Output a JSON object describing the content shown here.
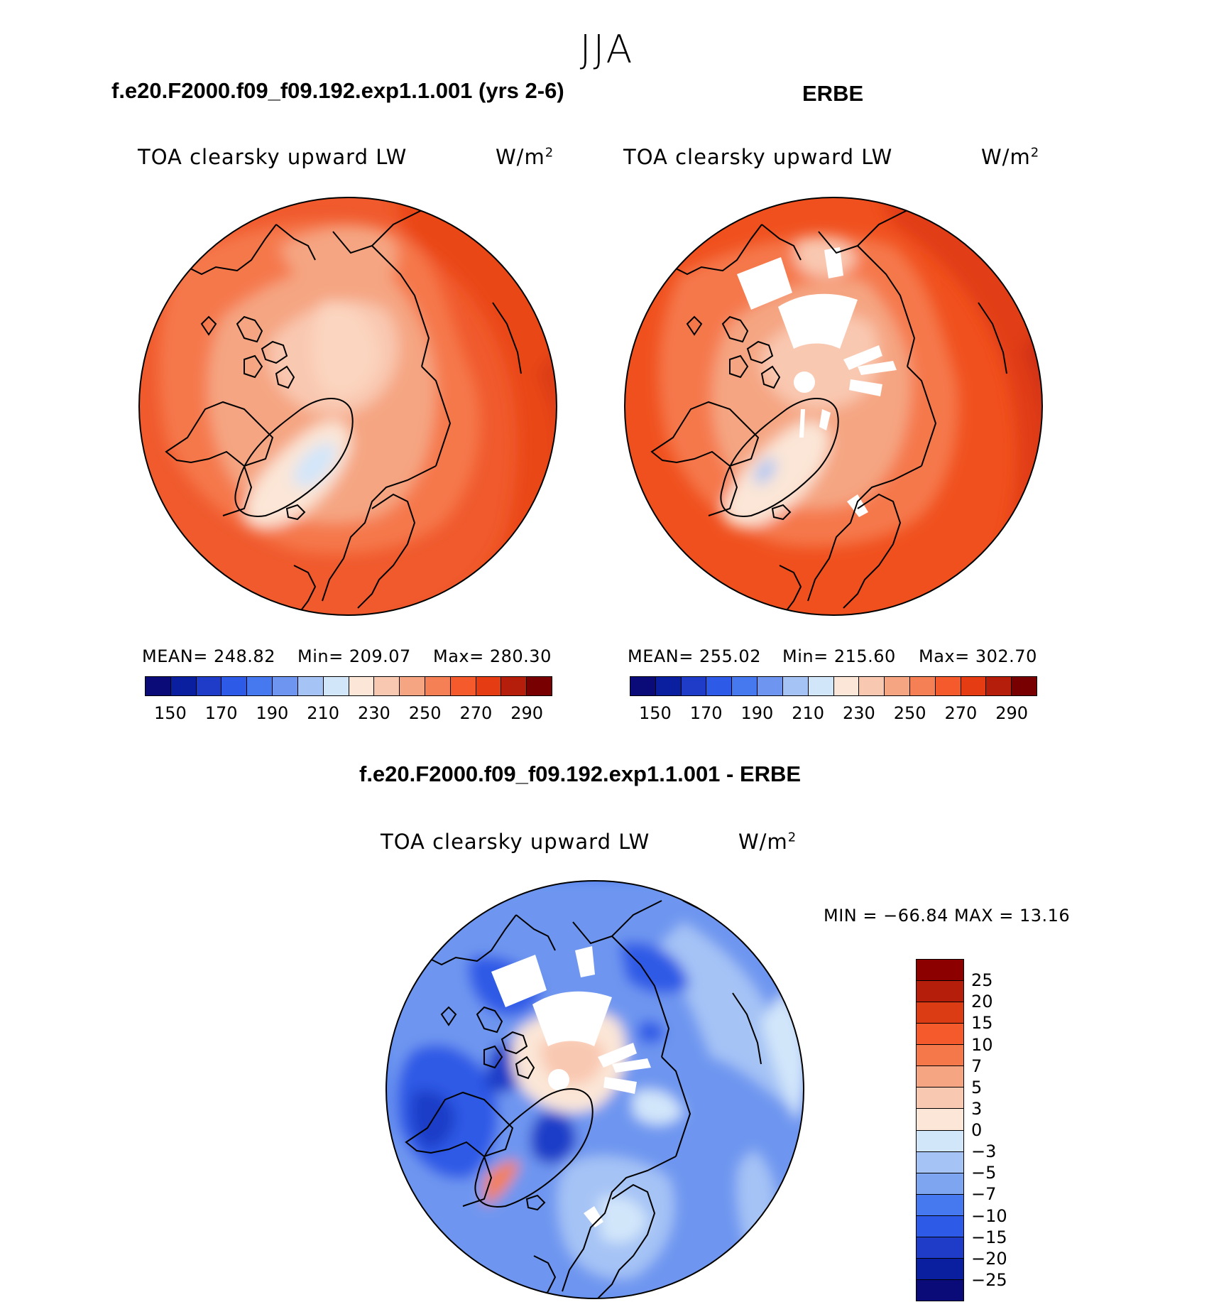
{
  "figure": {
    "season": "JJA"
  },
  "panels": {
    "model": {
      "title": "f.e20.F2000.f09_f09.192.exp1.1.001 (yrs 2-6)",
      "variable": "TOA clearsky upward LW",
      "units": "W/m",
      "units_exp": "2",
      "mean_label": "MEAN= 248.82",
      "min_label": "Min= 209.07",
      "max_label": "Max= 280.30"
    },
    "obs": {
      "title": "ERBE",
      "variable": "TOA clearsky upward LW",
      "units": "W/m",
      "units_exp": "2",
      "mean_label": "MEAN= 255.02",
      "min_label": "Min= 215.60",
      "max_label": "Max= 302.70"
    },
    "diff": {
      "title": "f.e20.F2000.f09_f09.192.exp1.1.001 - ERBE",
      "variable": "TOA clearsky upward LW",
      "units": "W/m",
      "units_exp": "2",
      "minmax_label": "MIN = −66.84 MAX =   13.16"
    }
  },
  "colorbars": {
    "absolute": {
      "ticks": [
        "150",
        "170",
        "190",
        "210",
        "230",
        "250",
        "270",
        "290"
      ],
      "colors": [
        "#0a0a78",
        "#0a1ea0",
        "#1e3cc8",
        "#2d5ae6",
        "#4678f0",
        "#6e96f0",
        "#a5c3f5",
        "#d2e6fa",
        "#fbe6d7",
        "#f9c8b1",
        "#f5a582",
        "#f58055",
        "#f55a2d",
        "#e63c14",
        "#b41e0a",
        "#780000"
      ]
    },
    "difference": {
      "ticks": [
        "25",
        "20",
        "15",
        "10",
        "7",
        "5",
        "3",
        "0",
        "−3",
        "−5",
        "−7",
        "−10",
        "−15",
        "−20",
        "−25"
      ],
      "colors": [
        "#8c0000",
        "#b41e0a",
        "#dc3c14",
        "#f55a2d",
        "#f5784b",
        "#f5a582",
        "#f9c8b1",
        "#fbe6d7",
        "#d2e6fa",
        "#a5c3f5",
        "#7da5f0",
        "#4678f0",
        "#2d5ae6",
        "#1e3cc8",
        "#0a1ea0",
        "#0a0a78"
      ]
    }
  }
}
